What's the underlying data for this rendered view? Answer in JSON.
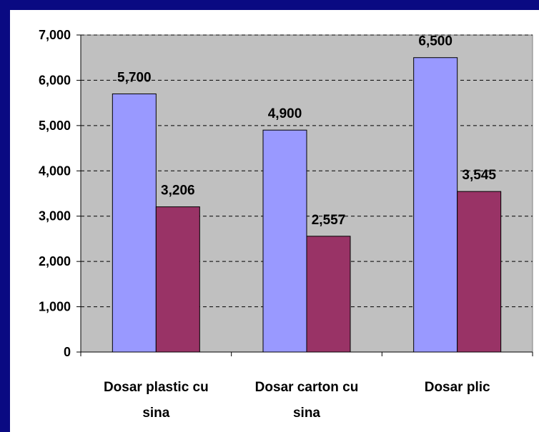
{
  "chart_data": {
    "type": "bar",
    "categories": [
      [
        "Dosar plastic cu",
        "sina"
      ],
      [
        "Dosar carton cu",
        "sina"
      ],
      [
        "Dosar plic"
      ]
    ],
    "series": [
      {
        "values": [
          5700,
          4900,
          6500
        ],
        "labels": [
          "5,700",
          "4,900",
          "6,500"
        ],
        "color": "#9999ff"
      },
      {
        "values": [
          3206,
          2557,
          3545
        ],
        "labels": [
          "3,206",
          "2,557",
          "3,545"
        ],
        "color": "#993366"
      }
    ],
    "ylim": [
      0,
      7000
    ],
    "yticks": [
      0,
      1000,
      2000,
      3000,
      4000,
      5000,
      6000,
      7000
    ],
    "ytick_labels": [
      "0",
      "1,000",
      "2,000",
      "3,000",
      "4,000",
      "5,000",
      "6,000",
      "7,000"
    ],
    "grid": true,
    "plot_background": "#c0c0c0",
    "page_background": "#0a0a82"
  }
}
